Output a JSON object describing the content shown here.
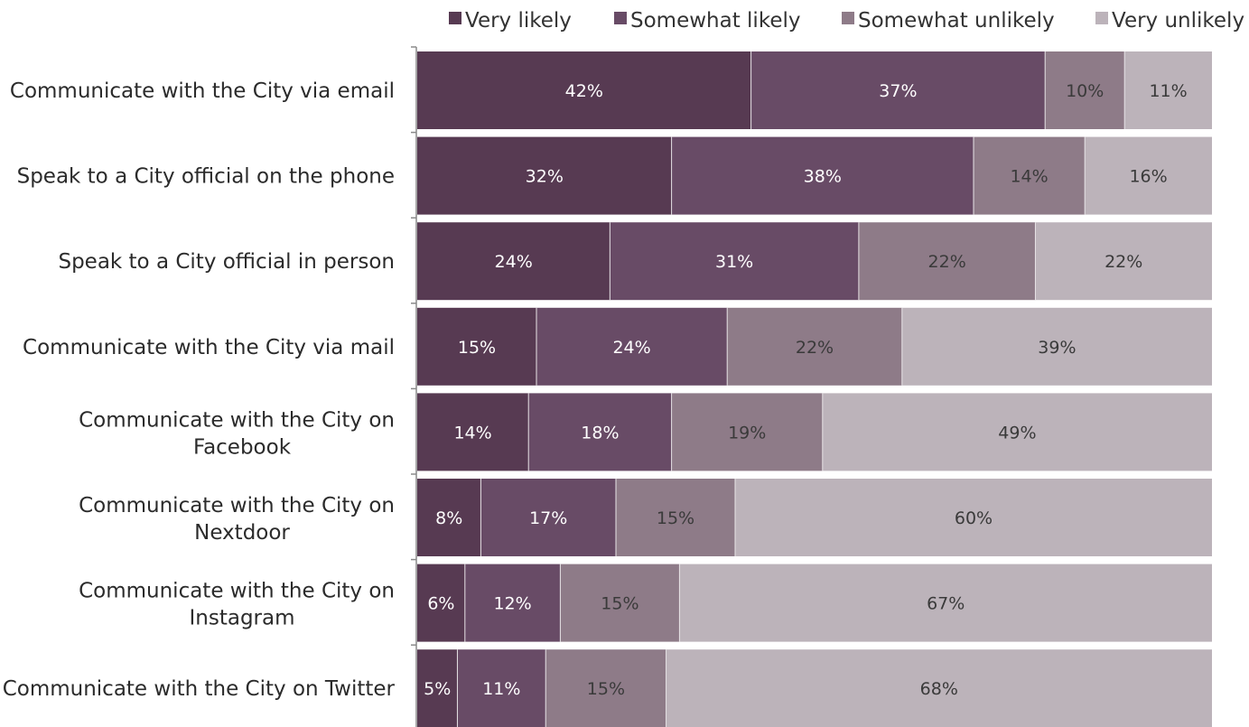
{
  "chart_data": {
    "type": "bar",
    "orientation": "horizontal",
    "stacked": true,
    "percent_stacked": true,
    "legend_position": "top",
    "grid": false,
    "xlim": [
      0,
      100
    ],
    "unit": "%",
    "categories": [
      [
        "Communicate with the City via email"
      ],
      [
        "Speak to a City official on the phone"
      ],
      [
        "Speak to a City official in person"
      ],
      [
        "Communicate with the City via mail"
      ],
      [
        "Communicate with the City on",
        "Facebook"
      ],
      [
        "Communicate with the City on",
        "Nextdoor"
      ],
      [
        "Communicate with the City on",
        "Instagram"
      ],
      [
        "Communicate with the City on Twitter"
      ]
    ],
    "series": [
      {
        "name": "Very likely",
        "color": "#573a52",
        "label_color": "#ffffff",
        "values": [
          42,
          32,
          24,
          15,
          14,
          8,
          6,
          5
        ]
      },
      {
        "name": "Somewhat likely",
        "color": "#684b66",
        "label_color": "#ffffff",
        "values": [
          37,
          38,
          31,
          24,
          18,
          17,
          12,
          11
        ]
      },
      {
        "name": "Somewhat unlikely",
        "color": "#8e7b88",
        "label_color": "#3a3a3a",
        "values": [
          10,
          14,
          22,
          22,
          19,
          15,
          15,
          15
        ]
      },
      {
        "name": "Very unlikely",
        "color": "#bcb3ba",
        "label_color": "#3a3a3a",
        "values": [
          11,
          16,
          22,
          39,
          49,
          60,
          67,
          68
        ]
      }
    ]
  }
}
